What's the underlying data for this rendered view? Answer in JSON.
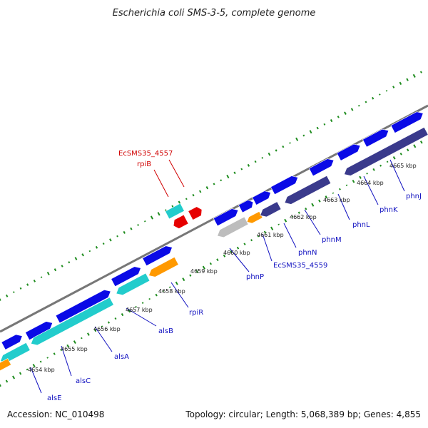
{
  "title": "Escherichia coli SMS-3-5, complete genome",
  "footer": {
    "accession": "Accession: NC_010498",
    "summary": "Topology: circular; Length: 5,068,389 bp; Genes: 4,855"
  },
  "kbp_labels": [
    "4654 kbp",
    "4655 kbp",
    "4656 kbp",
    "4657 kbp",
    "4658 kbp",
    "4659 kbp",
    "4660 kbp",
    "4661 kbp",
    "4662 kbp",
    "4663 kbp",
    "4664 kbp",
    "4665 kbp"
  ],
  "gene_labels": {
    "alsE": "alsE",
    "alsC": "alsC",
    "alsA": "alsA",
    "alsB": "alsB",
    "rpiR": "rpiR",
    "phnP": "phnP",
    "EcSMS35_4559": "EcSMS35_4559",
    "phnN": "phnN",
    "phnM": "phnM",
    "phnL": "phnL",
    "phnK": "phnK",
    "phnJ": "phnJ",
    "EcSMS35_4557": "EcSMS35_4557",
    "rpiB": "rpiB"
  },
  "colors": {
    "forward_cds": "#0a0ae6",
    "forward_cds_alt": "#3a3a8c",
    "reverse_cds": "#22cccc",
    "orange_cds": "#ff9900",
    "gray_cds": "#bdbdbd",
    "rna_red": "#e60000",
    "backbone": "#808080",
    "tick_green": "#1e8c1e",
    "label_blue": "#1010c0",
    "label_red": "#d00000"
  }
}
